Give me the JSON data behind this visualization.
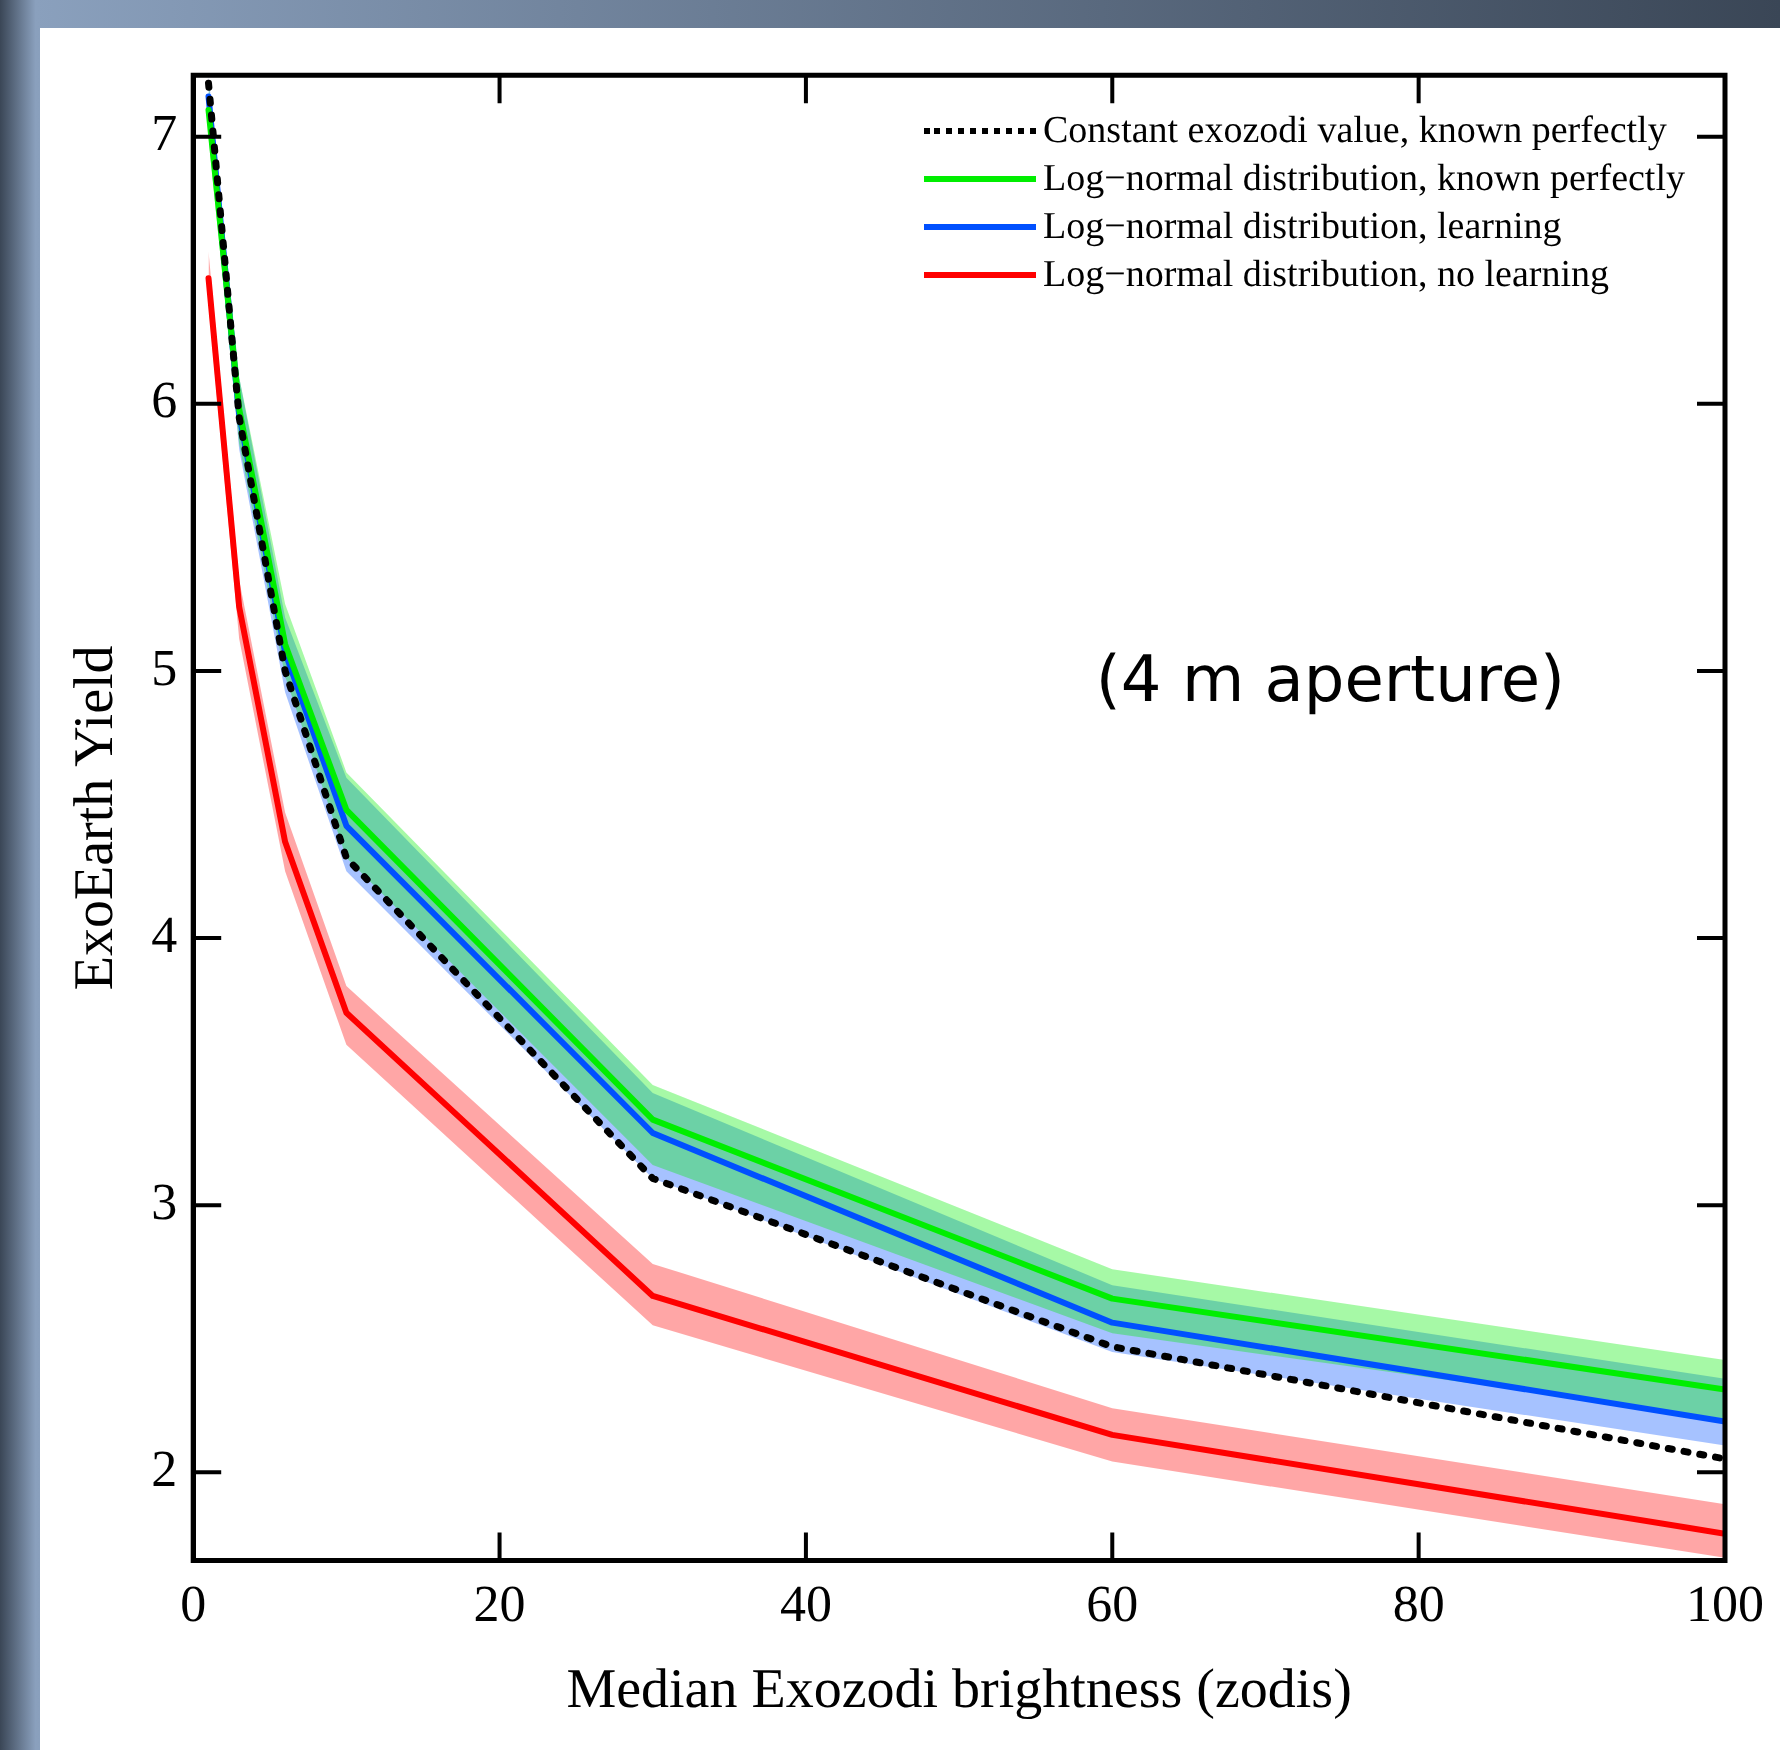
{
  "chart_data": {
    "type": "line",
    "xlabel": "Median Exozodi brightness (zodis)",
    "ylabel": "ExoEarth Yield",
    "x": [
      1,
      3,
      6,
      10,
      30,
      60,
      100
    ],
    "xlim": [
      0,
      100
    ],
    "xticks": [
      0,
      20,
      40,
      60,
      80,
      100
    ],
    "ylim": [
      1.67,
      7.23
    ],
    "yticks": [
      2,
      3,
      4,
      5,
      6,
      7
    ],
    "grid": false,
    "legend": "top right",
    "marker": "none",
    "annotations": [
      "(4 m aperture)"
    ],
    "series": [
      {
        "name": "Constant exozodi value, known perfectly",
        "color": "#000000",
        "line_style": "dotted",
        "values": [
          7.2,
          5.95,
          5.0,
          4.3,
          3.1,
          2.47,
          2.05
        ]
      },
      {
        "name": "Log−normal distribution, known perfectly",
        "color": "#00ee00",
        "line_style": "solid",
        "values": [
          7.1,
          5.98,
          5.1,
          4.48,
          3.32,
          2.65,
          2.31
        ],
        "lower": [
          7.0,
          5.85,
          4.98,
          4.3,
          3.15,
          2.52,
          2.2
        ],
        "upper": [
          7.2,
          6.1,
          5.25,
          4.62,
          3.45,
          2.76,
          2.42
        ]
      },
      {
        "name": "Log−normal distribution, learning",
        "color": "#0050ff",
        "line_style": "solid",
        "values": [
          7.15,
          5.96,
          5.07,
          4.42,
          3.27,
          2.56,
          2.19
        ],
        "lower": [
          7.05,
          5.83,
          4.92,
          4.25,
          3.1,
          2.45,
          2.1
        ],
        "upper": [
          7.23,
          6.1,
          5.2,
          4.6,
          3.42,
          2.7,
          2.35
        ]
      },
      {
        "name": "Log−normal distribution, no learning",
        "color": "#ff0000",
        "line_style": "solid",
        "values": [
          6.47,
          5.24,
          4.36,
          3.72,
          2.66,
          2.14,
          1.77
        ],
        "lower": [
          6.37,
          5.12,
          4.25,
          3.6,
          2.55,
          2.04,
          1.68
        ],
        "upper": [
          6.57,
          5.34,
          4.47,
          3.82,
          2.78,
          2.24,
          1.88
        ]
      }
    ]
  }
}
